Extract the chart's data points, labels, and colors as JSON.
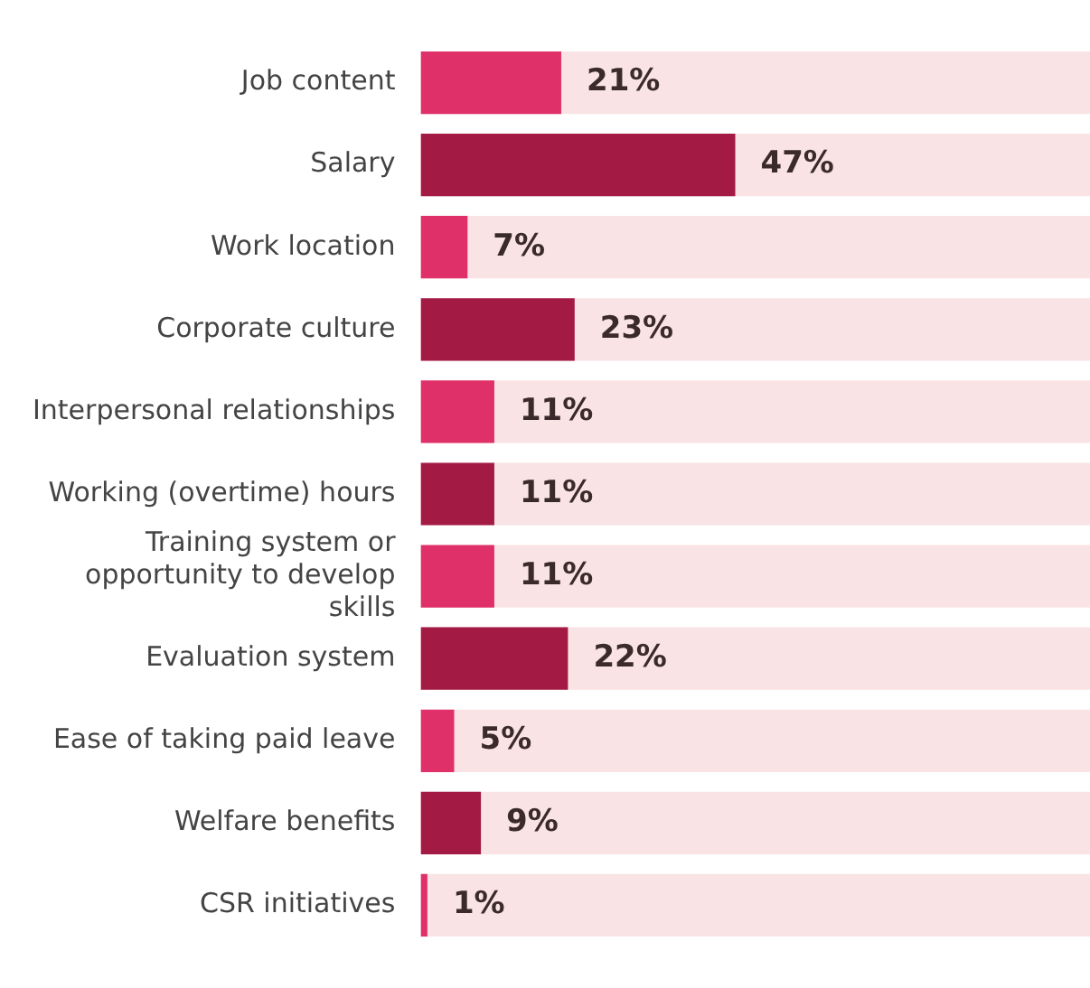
{
  "chart_data": {
    "type": "bar",
    "orientation": "horizontal",
    "categories": [
      "Job content",
      "Salary",
      "Work location",
      "Corporate culture",
      "Interpersonal relationships",
      "Working (overtime) hours",
      "Training system or opportunity to develop skills",
      "Evaluation system",
      "Ease of taking paid leave",
      "Welfare benefits",
      "CSR initiatives"
    ],
    "values": [
      21,
      47,
      7,
      23,
      11,
      11,
      11,
      22,
      5,
      9,
      1
    ],
    "colors": [
      "#e0306a",
      "#a31a45",
      "#e0306a",
      "#a31a45",
      "#e0306a",
      "#a31a45",
      "#e0306a",
      "#a31a45",
      "#e0306a",
      "#a31a45",
      "#e0306a"
    ],
    "value_labels": [
      "21%",
      "47%",
      "7%",
      "23%",
      "11%",
      "11%",
      "11%",
      "22%",
      "5%",
      "9%",
      "1%"
    ],
    "xlim": [
      0,
      100
    ],
    "tick_labels": "y",
    "grid": false,
    "legend": false,
    "bands": [
      {
        "axis": "x",
        "from": 0,
        "to": 100,
        "color": "#f9e3e4"
      }
    ]
  }
}
